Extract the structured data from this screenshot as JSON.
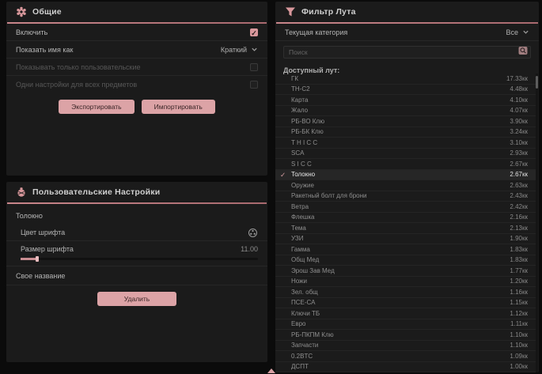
{
  "colors": {
    "accent": "#d9989c",
    "panel_bg": "#1b1b1b",
    "page_bg": "#0b0b0b",
    "selected_row_bg": "#262626"
  },
  "general": {
    "title": "Общие",
    "icon": "gear-icon",
    "rows": [
      {
        "label": "Включить",
        "control": "checkbox",
        "checked": true,
        "disabled": false
      },
      {
        "label": "Показать имя как",
        "control": "select",
        "value": "Краткий",
        "disabled": false
      },
      {
        "label": "Показывать только пользовательские",
        "control": "checkbox",
        "checked": false,
        "disabled": true
      },
      {
        "label": "Одни настройки для всех предметов",
        "control": "checkbox",
        "checked": false,
        "disabled": true
      }
    ],
    "check_glyph": "✓",
    "export_label": "Экспортировать",
    "import_label": "Импортировать"
  },
  "user_settings": {
    "title": "Пользовательские Настройки",
    "icon": "user-settings-icon",
    "item_name": "Толокно",
    "font_color_label": "Цвет шрифта",
    "font_color_icon": "color-wheel-icon",
    "font_size_label": "Размер шрифта",
    "font_size_value": "11.00",
    "custom_name_label": "Свое название",
    "delete_label": "Удалить"
  },
  "loot_filter": {
    "title": "Фильтр Лута",
    "icon": "funnel-icon",
    "category_label": "Текущая категория",
    "category_value": "Все",
    "search_placeholder": "Поиск",
    "search_icon": "search-icon",
    "list_label": "Доступный лут:",
    "selected_glyph": "✓",
    "items": [
      {
        "name": "ГК",
        "value": "17.33кк",
        "selected": false
      },
      {
        "name": "ТН-С2",
        "value": "4.48кк",
        "selected": false
      },
      {
        "name": "Карта",
        "value": "4.10кк",
        "selected": false
      },
      {
        "name": "Жало",
        "value": "4.07кк",
        "selected": false
      },
      {
        "name": "РБ-ВО Клю",
        "value": "3.90кк",
        "selected": false
      },
      {
        "name": "РБ-БК Клю",
        "value": "3.24кк",
        "selected": false
      },
      {
        "name": "T H I C C",
        "value": "3.10кк",
        "selected": false
      },
      {
        "name": "SCA",
        "value": "2.93кк",
        "selected": false
      },
      {
        "name": "S I C C",
        "value": "2.67кк",
        "selected": false
      },
      {
        "name": "Толокно",
        "value": "2.67кк",
        "selected": true
      },
      {
        "name": "Оружие",
        "value": "2.63кк",
        "selected": false
      },
      {
        "name": "Ракетный болт для брони",
        "value": "2.43кк",
        "selected": false
      },
      {
        "name": "Ветра",
        "value": "2.42кк",
        "selected": false
      },
      {
        "name": "Флешка",
        "value": "2.16кк",
        "selected": false
      },
      {
        "name": "Тема",
        "value": "2.13кк",
        "selected": false
      },
      {
        "name": "УЗИ",
        "value": "1.90кк",
        "selected": false
      },
      {
        "name": "Гамма",
        "value": "1.83кк",
        "selected": false
      },
      {
        "name": "Общ Мед",
        "value": "1.83кк",
        "selected": false
      },
      {
        "name": "Эрош Зав Мед",
        "value": "1.77кк",
        "selected": false
      },
      {
        "name": "Ножи",
        "value": "1.20кк",
        "selected": false
      },
      {
        "name": "Зел. общ",
        "value": "1.16кк",
        "selected": false
      },
      {
        "name": "ПСЕ-СА",
        "value": "1.15кк",
        "selected": false
      },
      {
        "name": "Ключи ТБ",
        "value": "1.12кк",
        "selected": false
      },
      {
        "name": "Евро",
        "value": "1.11кк",
        "selected": false
      },
      {
        "name": "РБ-ПКПМ Клю",
        "value": "1.10кк",
        "selected": false
      },
      {
        "name": "Запчасти",
        "value": "1.10кк",
        "selected": false
      },
      {
        "name": "0.2BTC",
        "value": "1.09кк",
        "selected": false
      },
      {
        "name": "ДСПТ",
        "value": "1.00кк",
        "selected": false
      }
    ]
  }
}
